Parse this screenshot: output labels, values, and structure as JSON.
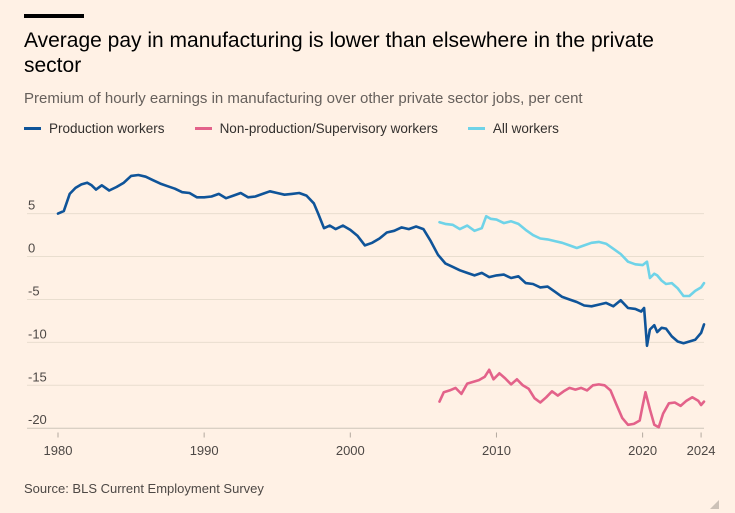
{
  "header": {
    "title": "Average pay in manufacturing is lower than elsewhere in the private sector",
    "subtitle": "Premium of hourly earnings in manufacturing over other private sector jobs, per cent"
  },
  "legend": {
    "items": [
      {
        "label": "Production workers",
        "color": "#0F5499"
      },
      {
        "label": "Non-production/Supervisory workers",
        "color": "#E3628A"
      },
      {
        "label": "All workers",
        "color": "#6FD3E8"
      }
    ]
  },
  "footer": {
    "source": "Source: BLS Current Employment Survey"
  },
  "chart_data": {
    "type": "line",
    "title": "Average pay in manufacturing is lower than elsewhere in the private sector",
    "subtitle": "Premium of hourly earnings in manufacturing over other private sector jobs, per cent",
    "xlabel": "",
    "ylabel": "",
    "xlim": [
      1980,
      2024.2
    ],
    "ylim": [
      -20.5,
      9.5
    ],
    "xticks": [
      1980,
      1990,
      2000,
      2010,
      2020,
      2024
    ],
    "xtick_labels": [
      "1980",
      "1990",
      "2000",
      "2010",
      "2020",
      "2024"
    ],
    "yticks": [
      5,
      0,
      -5,
      -10,
      -15,
      -20
    ],
    "ytick_labels": [
      "5",
      "0",
      "-5",
      "-10",
      "-15",
      "-20"
    ],
    "grid": "horizontal",
    "legend_position": "top-left",
    "series": [
      {
        "name": "Production workers",
        "color": "#0F5499",
        "x": [
          1980,
          1980.4,
          1980.8,
          1981.2,
          1981.6,
          1982,
          1982.3,
          1982.6,
          1983,
          1983.5,
          1984,
          1984.5,
          1985,
          1985.5,
          1986,
          1986.5,
          1987,
          1987.5,
          1988,
          1988.5,
          1989,
          1989.5,
          1990,
          1990.5,
          1991,
          1991.5,
          1992,
          1992.5,
          1993,
          1993.5,
          1994,
          1994.5,
          1995,
          1995.5,
          1996,
          1996.5,
          1997,
          1997.5,
          1997.8,
          1998.2,
          1998.6,
          1999,
          1999.5,
          2000,
          2000.5,
          2001,
          2001.5,
          2002,
          2002.5,
          2003,
          2003.5,
          2004,
          2004.5,
          2005,
          2005.5,
          2006,
          2006.5,
          2007,
          2007.5,
          2008,
          2008.5,
          2009,
          2009.5,
          2010,
          2010.5,
          2011,
          2011.5,
          2012,
          2012.5,
          2013,
          2013.5,
          2014,
          2014.5,
          2015,
          2015.5,
          2016,
          2016.5,
          2017,
          2017.5,
          2018,
          2018.5,
          2019,
          2019.5,
          2019.9,
          2020.1,
          2020.3,
          2020.5,
          2020.8,
          2021,
          2021.3,
          2021.6,
          2022,
          2022.4,
          2022.8,
          2023.2,
          2023.6,
          2024,
          2024.2
        ],
        "values": [
          5.0,
          5.3,
          7.3,
          8.0,
          8.4,
          8.6,
          8.3,
          7.8,
          8.3,
          7.7,
          8.1,
          8.6,
          9.4,
          9.5,
          9.3,
          8.9,
          8.5,
          8.2,
          7.9,
          7.5,
          7.4,
          6.9,
          6.9,
          7.0,
          7.3,
          6.8,
          7.1,
          7.4,
          6.9,
          7.0,
          7.3,
          7.6,
          7.4,
          7.2,
          7.3,
          7.4,
          7.1,
          6.2,
          5.0,
          3.3,
          3.6,
          3.2,
          3.6,
          3.1,
          2.4,
          1.3,
          1.6,
          2.1,
          2.8,
          3.0,
          3.4,
          3.2,
          3.5,
          3.2,
          1.8,
          0.2,
          -0.8,
          -1.2,
          -1.6,
          -1.9,
          -2.2,
          -1.9,
          -2.4,
          -2.2,
          -2.1,
          -2.5,
          -2.3,
          -3.1,
          -3.2,
          -3.6,
          -3.5,
          -4.1,
          -4.7,
          -5.0,
          -5.3,
          -5.7,
          -5.8,
          -5.6,
          -5.4,
          -5.8,
          -5.1,
          -6.0,
          -6.1,
          -6.4,
          -6.0,
          -10.4,
          -8.5,
          -8.0,
          -8.8,
          -8.3,
          -8.4,
          -9.3,
          -9.9,
          -10.1,
          -9.9,
          -9.7,
          -8.9,
          -7.9
        ]
      },
      {
        "name": "Non-production/Supervisory workers",
        "color": "#E3628A",
        "x": [
          2006.1,
          2006.4,
          2006.8,
          2007.2,
          2007.6,
          2008,
          2008.4,
          2008.8,
          2009.2,
          2009.5,
          2009.8,
          2010.2,
          2010.6,
          2011,
          2011.4,
          2011.8,
          2012.2,
          2012.6,
          2013,
          2013.4,
          2013.8,
          2014.2,
          2014.6,
          2015,
          2015.4,
          2015.8,
          2016.2,
          2016.6,
          2017,
          2017.4,
          2017.8,
          2018.2,
          2018.6,
          2019,
          2019.4,
          2019.8,
          2020,
          2020.2,
          2020.5,
          2020.8,
          2021.1,
          2021.4,
          2021.8,
          2022.2,
          2022.6,
          2023,
          2023.4,
          2023.8,
          2024,
          2024.2
        ],
        "values": [
          -16.9,
          -15.8,
          -15.6,
          -15.3,
          -16.0,
          -14.8,
          -14.6,
          -14.4,
          -14.0,
          -13.2,
          -14.3,
          -13.6,
          -14.2,
          -14.9,
          -14.3,
          -15.0,
          -15.4,
          -16.5,
          -17.0,
          -16.4,
          -15.7,
          -16.2,
          -15.7,
          -15.3,
          -15.5,
          -15.3,
          -15.6,
          -15.0,
          -14.9,
          -15.0,
          -15.6,
          -17.2,
          -18.8,
          -19.6,
          -19.5,
          -19.1,
          -17.4,
          -15.8,
          -17.8,
          -19.6,
          -19.9,
          -18.3,
          -17.1,
          -17.0,
          -17.4,
          -16.8,
          -16.4,
          -16.8,
          -17.3,
          -16.9
        ]
      },
      {
        "name": "All workers",
        "color": "#6FD3E8",
        "x": [
          2006.1,
          2006.5,
          2007,
          2007.5,
          2008,
          2008.5,
          2009,
          2009.3,
          2009.6,
          2010,
          2010.5,
          2011,
          2011.5,
          2012,
          2012.5,
          2013,
          2013.5,
          2014,
          2014.5,
          2015,
          2015.5,
          2016,
          2016.5,
          2017,
          2017.5,
          2018,
          2018.5,
          2019,
          2019.5,
          2020,
          2020.3,
          2020.5,
          2020.8,
          2021,
          2021.3,
          2021.6,
          2022,
          2022.4,
          2022.8,
          2023.2,
          2023.6,
          2024,
          2024.2
        ],
        "values": [
          4.0,
          3.8,
          3.7,
          3.2,
          3.6,
          3.0,
          3.3,
          4.7,
          4.4,
          4.3,
          3.9,
          4.1,
          3.8,
          3.1,
          2.5,
          2.1,
          2.0,
          1.8,
          1.6,
          1.3,
          1.0,
          1.3,
          1.6,
          1.7,
          1.5,
          0.9,
          0.3,
          -0.6,
          -0.9,
          -1.0,
          -0.6,
          -2.5,
          -2.0,
          -2.2,
          -2.8,
          -3.2,
          -3.1,
          -3.7,
          -4.6,
          -4.6,
          -4.0,
          -3.6,
          -3.1
        ]
      }
    ]
  }
}
